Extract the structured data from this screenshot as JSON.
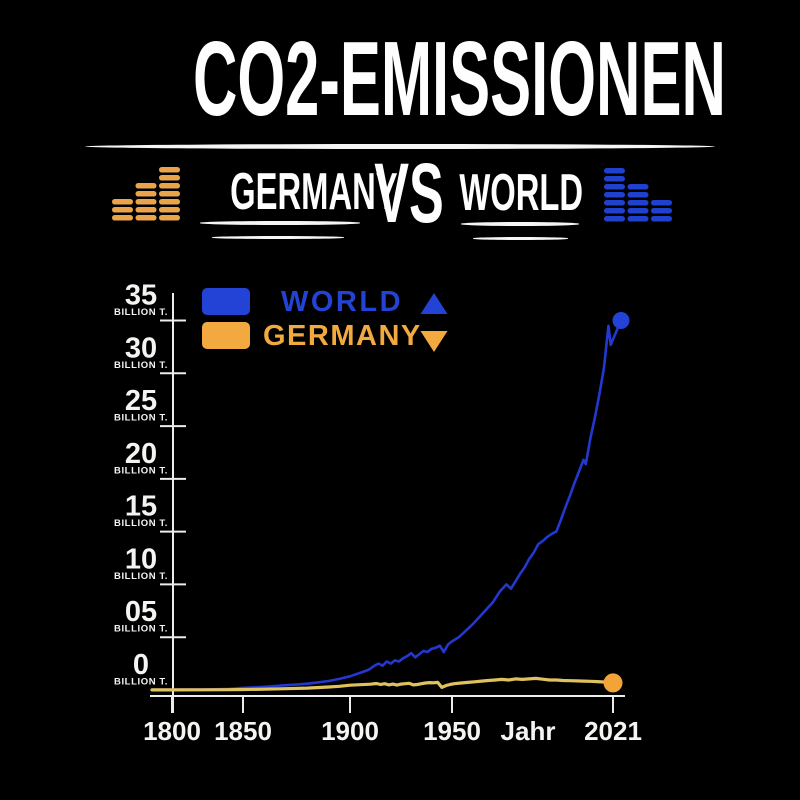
{
  "header": {
    "title": "CO2-EMISSIONEN",
    "versus": {
      "left": "GERMANY",
      "vs": "VS",
      "right": "WORLD"
    }
  },
  "colors": {
    "background": "#000000",
    "text_white": "#F4F4F2",
    "axis": "#ECECEC",
    "blue": "#2343D6",
    "blue_line": "#2238D0",
    "blue_equalizer": "#2040CE",
    "orange": "#F2A93F",
    "orange_equalizer": "#EBA449",
    "germany_line": "#DFC25E",
    "germany_dot": "#F2A438"
  },
  "equalizers": {
    "left": {
      "name": "orange-equalizer",
      "color": "#EBA449",
      "bars": [
        3,
        5,
        7
      ]
    },
    "right": {
      "name": "blue-equalizer",
      "color": "#2040CE",
      "bars": [
        7,
        5,
        3
      ]
    }
  },
  "legend": {
    "items": [
      {
        "label": "WORLD",
        "color": "#2343D6",
        "marker": "triangle-up"
      },
      {
        "label": "GERMANY",
        "color": "#F2A93F",
        "marker": "triangle-down"
      }
    ]
  },
  "chart_data": {
    "type": "line",
    "title": "CO2-EMISSIONEN",
    "subtitle": "GERMANY VS WORLD",
    "xlabel": "Jahr",
    "ylabel": "BILLION T.",
    "ylim": [
      0,
      35
    ],
    "grid": false,
    "legend_position": "top-left",
    "y_ticks": [
      35,
      30,
      25,
      20,
      15,
      10,
      5,
      0
    ],
    "y_tick_labels": [
      "35",
      "30",
      "25",
      "20",
      "15",
      "10",
      "05",
      "0"
    ],
    "y_unit": "BILLION T.",
    "x_tick_years": [
      1800,
      1850,
      1900,
      1950,
      2021
    ],
    "x_tick_labels": [
      "1800",
      "1850",
      "1900",
      "1950",
      "2021"
    ],
    "series": [
      {
        "name": "WORLD",
        "color": "#2238D0",
        "endpoint_color": "#2343D6",
        "x": [
          1800,
          1810,
          1820,
          1830,
          1840,
          1850,
          1855,
          1860,
          1865,
          1870,
          1875,
          1880,
          1885,
          1890,
          1895,
          1900,
          1903,
          1906,
          1909,
          1912,
          1914,
          1916,
          1918,
          1920,
          1922,
          1924,
          1926,
          1928,
          1930,
          1932,
          1934,
          1936,
          1938,
          1940,
          1942,
          1944,
          1946,
          1948,
          1950,
          1953,
          1956,
          1959,
          1962,
          1965,
          1968,
          1971,
          1974,
          1976,
          1978,
          1980,
          1982,
          1984,
          1986,
          1988,
          1990,
          1992,
          1994,
          1996,
          1998,
          2000,
          2002,
          2004,
          2006,
          2008,
          2009,
          2011,
          2013,
          2015,
          2017,
          2019,
          2020,
          2021
        ],
        "values": [
          0.03,
          0.04,
          0.05,
          0.07,
          0.1,
          0.2,
          0.25,
          0.3,
          0.38,
          0.45,
          0.52,
          0.6,
          0.72,
          0.85,
          1.05,
          1.3,
          1.5,
          1.7,
          1.9,
          2.3,
          2.5,
          2.3,
          2.7,
          2.5,
          2.8,
          2.7,
          3.0,
          3.2,
          3.5,
          3.1,
          3.4,
          3.7,
          3.6,
          3.9,
          4.0,
          4.2,
          3.6,
          4.3,
          4.6,
          5.0,
          5.6,
          6.2,
          6.9,
          7.6,
          8.3,
          9.3,
          10.0,
          9.6,
          10.3,
          11.0,
          11.6,
          12.4,
          13.0,
          13.8,
          14.1,
          14.5,
          14.8,
          15.0,
          16.1,
          17.3,
          18.4,
          19.6,
          20.7,
          21.8,
          21.4,
          23.8,
          25.8,
          28.0,
          30.5,
          34.5,
          32.7,
          35.0
        ]
      },
      {
        "name": "GERMANY",
        "color": "#DFC25E",
        "endpoint_color": "#F2A438",
        "x": [
          1800,
          1820,
          1840,
          1850,
          1860,
          1870,
          1880,
          1890,
          1895,
          1900,
          1905,
          1910,
          1913,
          1915,
          1917,
          1919,
          1921,
          1923,
          1925,
          1927,
          1929,
          1931,
          1933,
          1935,
          1937,
          1939,
          1941,
          1943,
          1945,
          1947,
          1949,
          1951,
          1954,
          1957,
          1960,
          1963,
          1966,
          1969,
          1972,
          1975,
          1978,
          1981,
          1984,
          1987,
          1990,
          1993,
          1996,
          1999,
          2002,
          2005,
          2008,
          2011,
          2014,
          2017,
          2019,
          2020,
          2021
        ],
        "values": [
          0.01,
          0.02,
          0.03,
          0.05,
          0.08,
          0.12,
          0.18,
          0.28,
          0.35,
          0.45,
          0.5,
          0.55,
          0.62,
          0.52,
          0.6,
          0.48,
          0.56,
          0.46,
          0.56,
          0.6,
          0.63,
          0.48,
          0.52,
          0.6,
          0.66,
          0.7,
          0.68,
          0.72,
          0.25,
          0.42,
          0.52,
          0.6,
          0.66,
          0.72,
          0.78,
          0.84,
          0.9,
          0.95,
          1.0,
          0.95,
          1.05,
          1.0,
          1.05,
          1.1,
          1.02,
          0.95,
          0.95,
          0.9,
          0.88,
          0.86,
          0.84,
          0.82,
          0.8,
          0.76,
          0.7,
          0.62,
          0.67
        ]
      }
    ]
  }
}
